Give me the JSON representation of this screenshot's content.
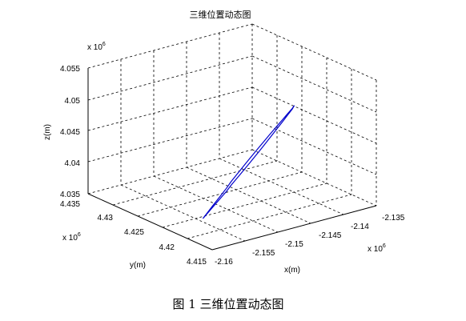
{
  "chart_data": {
    "type": "line",
    "title": "三维位置动态图",
    "xlabel": "x(m)",
    "ylabel": "y(m)",
    "zlabel": "z(m)",
    "x_ticks": [
      "-2.16",
      "-2.155",
      "-2.15",
      "-2.145",
      "-2.14",
      "-2.135"
    ],
    "y_ticks": [
      "4.415",
      "4.42",
      "4.425",
      "4.43",
      "4.435"
    ],
    "z_ticks": [
      "4.035",
      "4.04",
      "4.045",
      "4.05",
      "4.055"
    ],
    "x_exponent": "x 10",
    "y_exponent": "x 10",
    "z_exponent": "x 10",
    "exponent_power": "6",
    "grid": true,
    "series": [
      {
        "color": "#0000cc",
        "x": [
          -2.16,
          -2.159,
          -2.158,
          -2.157,
          -2.156,
          -2.155,
          -2.154,
          -2.153,
          -2.152,
          -2.151,
          -2.15,
          -2.149,
          -2.148,
          -2.147,
          -2.146,
          -2.145,
          -2.144,
          -2.143,
          -2.142,
          -2.141,
          -2.1405
        ],
        "y": [
          4.4165,
          4.4168,
          4.4171,
          4.4174,
          4.4177,
          4.418,
          4.4183,
          4.4186,
          4.4189,
          4.4192,
          4.4195,
          4.4198,
          4.4201,
          4.4204,
          4.4207,
          4.421,
          4.4213,
          4.4216,
          4.4219,
          4.4222,
          4.4224
        ],
        "z": [
          4.0393,
          4.0398,
          4.0403,
          4.0408,
          4.0413,
          4.0418,
          4.0424,
          4.0429,
          4.0434,
          4.0439,
          4.0444,
          4.0449,
          4.0454,
          4.0459,
          4.0464,
          4.0469,
          4.0474,
          4.0479,
          4.0484,
          4.0489,
          4.0492
        ]
      }
    ]
  },
  "caption": "图 1  三维位置动态图"
}
